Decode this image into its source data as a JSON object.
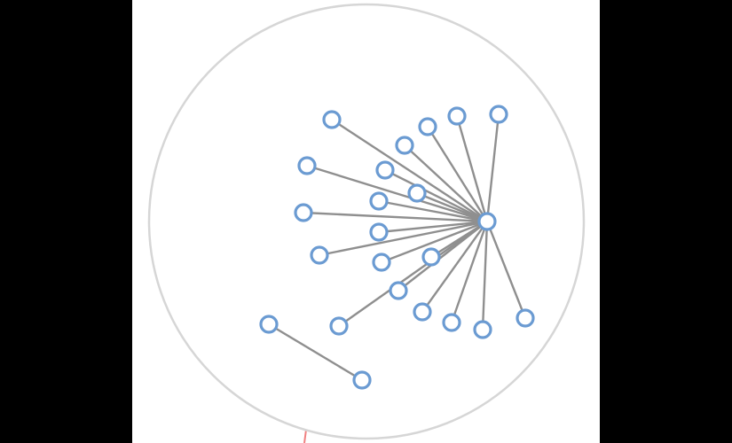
{
  "graph": {
    "colors": {
      "background": "#000000",
      "canvas": "#ffffff",
      "node_stroke": "#6b9bd2",
      "node_fill": "#ffffff",
      "edge": "#8f8f8f",
      "boundary": "#d6d6d6"
    },
    "hub": "n0",
    "nodes": [
      {
        "id": "n0"
      },
      {
        "id": "n1"
      },
      {
        "id": "n2"
      },
      {
        "id": "n3"
      },
      {
        "id": "n4"
      },
      {
        "id": "n5"
      },
      {
        "id": "n6"
      },
      {
        "id": "n7"
      },
      {
        "id": "n8"
      },
      {
        "id": "n9"
      },
      {
        "id": "n10"
      },
      {
        "id": "n11"
      },
      {
        "id": "n12"
      },
      {
        "id": "n13"
      },
      {
        "id": "n14"
      },
      {
        "id": "n15"
      },
      {
        "id": "n16"
      },
      {
        "id": "n17"
      },
      {
        "id": "n18"
      },
      {
        "id": "n19"
      },
      {
        "id": "n20"
      },
      {
        "id": "n21"
      },
      {
        "id": "n22"
      }
    ],
    "edges": [
      [
        "n0",
        "n1"
      ],
      [
        "n0",
        "n2"
      ],
      [
        "n0",
        "n3"
      ],
      [
        "n0",
        "n4"
      ],
      [
        "n0",
        "n5"
      ],
      [
        "n0",
        "n6"
      ],
      [
        "n0",
        "n7"
      ],
      [
        "n0",
        "n8"
      ],
      [
        "n0",
        "n9"
      ],
      [
        "n0",
        "n10"
      ],
      [
        "n0",
        "n11"
      ],
      [
        "n0",
        "n12"
      ],
      [
        "n0",
        "n13"
      ],
      [
        "n0",
        "n14"
      ],
      [
        "n0",
        "n15"
      ],
      [
        "n0",
        "n16"
      ],
      [
        "n0",
        "n17"
      ],
      [
        "n0",
        "n18"
      ],
      [
        "n0",
        "n19"
      ],
      [
        "n0",
        "n20"
      ],
      [
        "n21",
        "n22"
      ]
    ]
  }
}
